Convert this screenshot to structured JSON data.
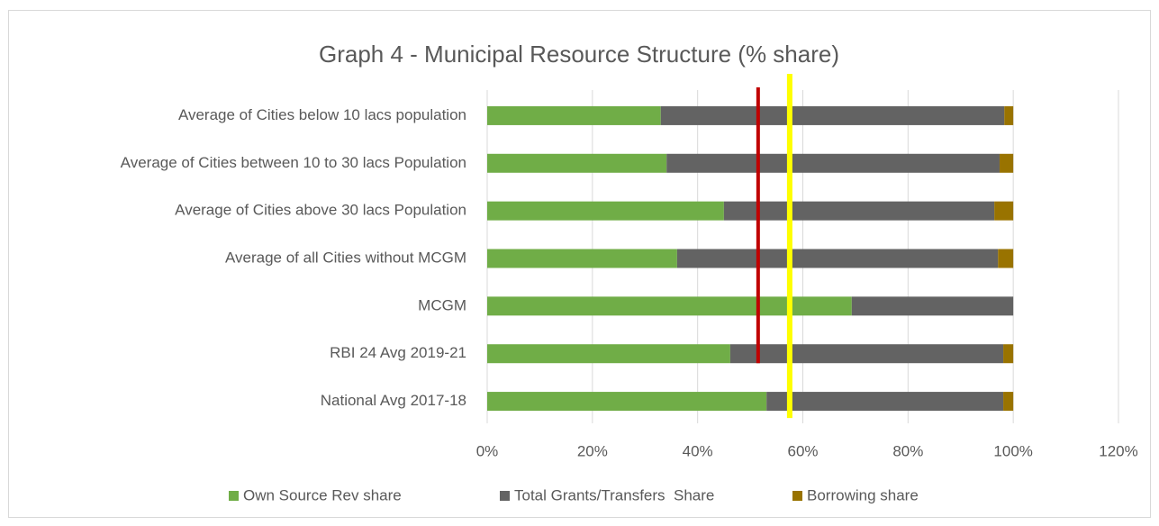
{
  "chart_data": {
    "type": "stacked_barh",
    "title": "Graph 4 - Municipal Resource Structure (% share)",
    "categories": [
      "Average of Cities below 10 lacs population",
      "Average of Cities between 10 to 30 lacs Population",
      "Average of Cities above 30 lacs Population",
      "Average of all Cities without MCGM",
      "MCGM",
      "RBI 24 Avg 2019-21",
      "National Avg 2017-18"
    ],
    "series": [
      {
        "name": "Own Source Rev share",
        "color": "#70ad47",
        "values": [
          33,
          34.1,
          45,
          36.1,
          69.3,
          46.2,
          53.1
        ]
      },
      {
        "name": "Total Grants/Transfers  Share",
        "color": "#636363",
        "values": [
          65.3,
          63.3,
          51.4,
          61,
          30.7,
          51.9,
          45
        ]
      },
      {
        "name": "Borrowing share",
        "color": "#997300",
        "values": [
          1.7,
          2.6,
          3.6,
          2.9,
          0,
          1.9,
          1.9
        ]
      }
    ],
    "xlim": [
      0,
      120
    ],
    "xticks": [
      {
        "value": 0,
        "label": "0%"
      },
      {
        "value": 20,
        "label": "20%"
      },
      {
        "value": 40,
        "label": "40%"
      },
      {
        "value": 60,
        "label": "60%"
      },
      {
        "value": 80,
        "label": "80%"
      },
      {
        "value": 100,
        "label": "100%"
      },
      {
        "value": 120,
        "label": "120%"
      }
    ],
    "grid": true,
    "legend": "bottom",
    "reference_lines": [
      {
        "value": 51.5,
        "color": "#c00000"
      },
      {
        "value": 57.5,
        "color": "#ffff00"
      }
    ]
  }
}
